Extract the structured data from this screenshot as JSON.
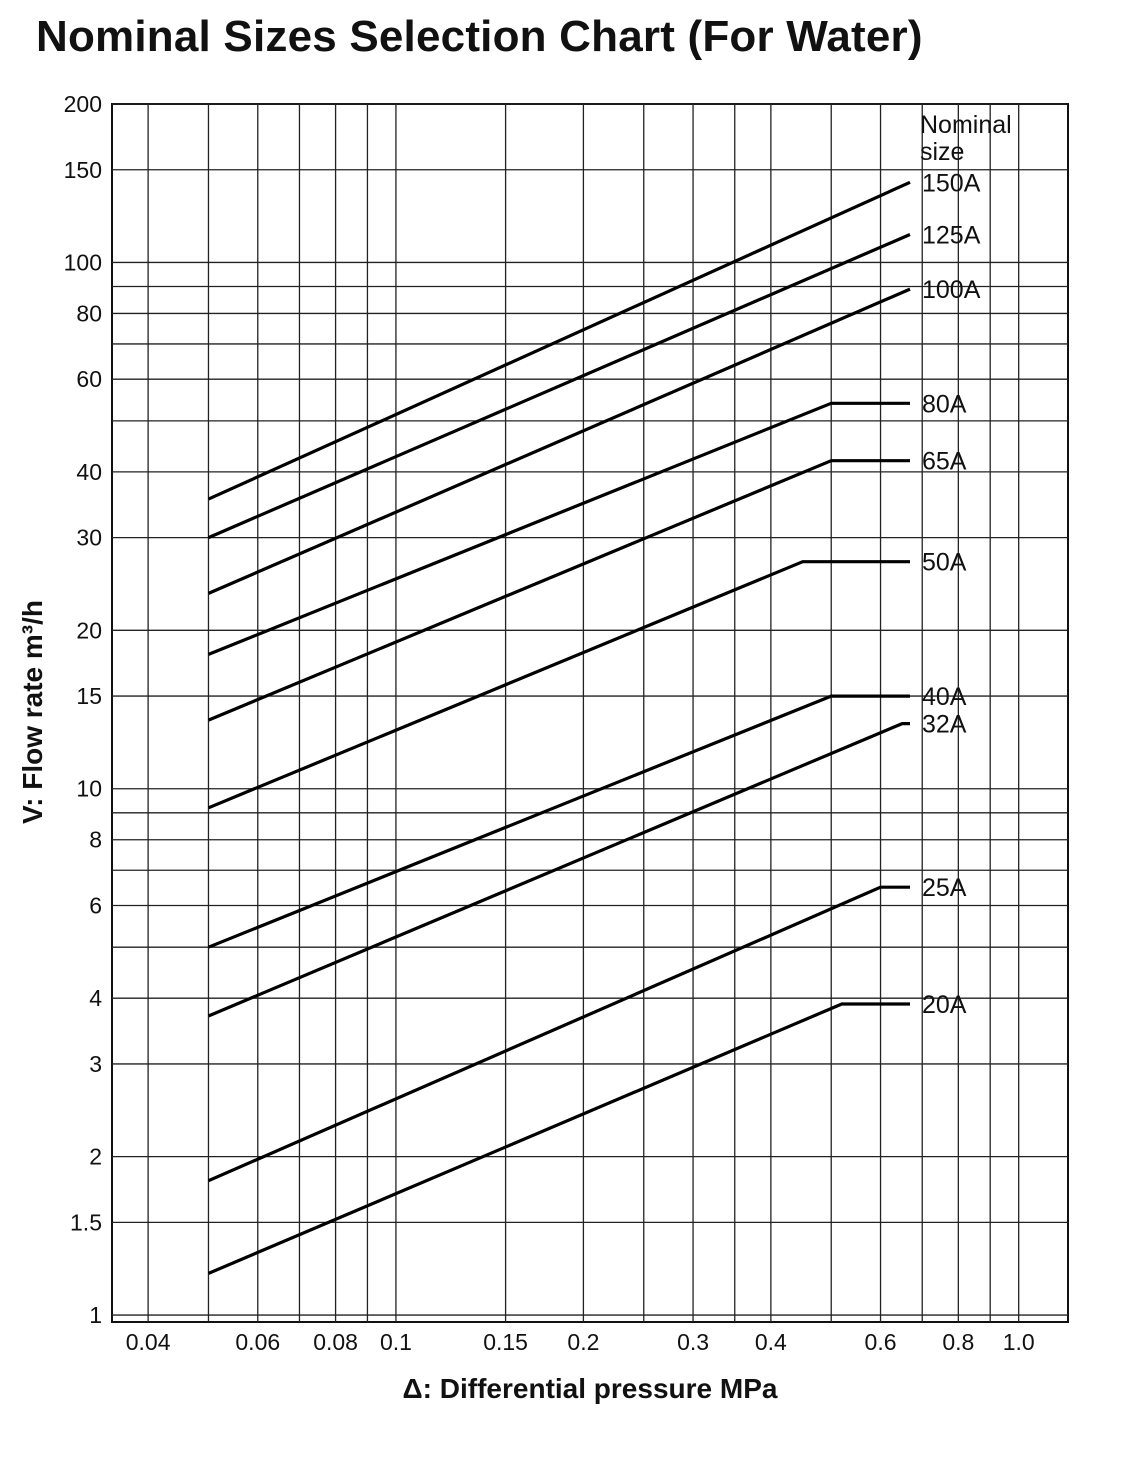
{
  "title": "Nominal Sizes Selection Chart (For Water)",
  "chart_data": {
    "type": "line",
    "title": "Nominal Sizes Selection Chart (For Water)",
    "xlabel": "Δ: Differential pressure MPa",
    "ylabel": "V: Flow rate m³/h",
    "xscale": "log",
    "yscale": "log",
    "xlim": [
      0.035,
      1.2
    ],
    "ylim": [
      0.97,
      200
    ],
    "grid": true,
    "legend_title_line1": "Nominal",
    "legend_title_line2": "size",
    "x_ticks": [
      {
        "value": 0.04,
        "label": "0.04"
      },
      {
        "value": 0.06,
        "label": "0.06"
      },
      {
        "value": 0.08,
        "label": "0.08"
      },
      {
        "value": 0.1,
        "label": "0.1"
      },
      {
        "value": 0.15,
        "label": "0.15"
      },
      {
        "value": 0.2,
        "label": "0.2"
      },
      {
        "value": 0.3,
        "label": "0.3"
      },
      {
        "value": 0.4,
        "label": "0.4"
      },
      {
        "value": 0.6,
        "label": "0.6"
      },
      {
        "value": 0.8,
        "label": "0.8"
      },
      {
        "value": 1.0,
        "label": "1.0"
      }
    ],
    "x_minor_grid": [
      0.05,
      0.07,
      0.09,
      0.25,
      0.35,
      0.5,
      0.7,
      0.9
    ],
    "y_ticks": [
      {
        "value": 1,
        "label": "1"
      },
      {
        "value": 1.5,
        "label": "1.5"
      },
      {
        "value": 2,
        "label": "2"
      },
      {
        "value": 3,
        "label": "3"
      },
      {
        "value": 4,
        "label": "4"
      },
      {
        "value": 6,
        "label": "6"
      },
      {
        "value": 8,
        "label": "8"
      },
      {
        "value": 10,
        "label": "10"
      },
      {
        "value": 15,
        "label": "15"
      },
      {
        "value": 20,
        "label": "20"
      },
      {
        "value": 30,
        "label": "30"
      },
      {
        "value": 40,
        "label": "40"
      },
      {
        "value": 60,
        "label": "60"
      },
      {
        "value": 80,
        "label": "80"
      },
      {
        "value": 100,
        "label": "100"
      },
      {
        "value": 150,
        "label": "150"
      },
      {
        "value": 200,
        "label": "200"
      }
    ],
    "y_minor_grid": [
      5,
      7,
      9,
      50,
      70,
      90
    ],
    "series": [
      {
        "name": "150A",
        "x": [
          0.05,
          0.8,
          1.0
        ],
        "y": [
          35.5,
          142,
          142
        ]
      },
      {
        "name": "125A",
        "x": [
          0.05,
          0.7,
          1.0
        ],
        "y": [
          30,
          113,
          113
        ]
      },
      {
        "name": "100A",
        "x": [
          0.05,
          0.7,
          1.0
        ],
        "y": [
          23.5,
          89,
          89
        ]
      },
      {
        "name": "80A",
        "x": [
          0.05,
          0.5,
          1.0
        ],
        "y": [
          18,
          54,
          54
        ]
      },
      {
        "name": "65A",
        "x": [
          0.05,
          0.5,
          1.0
        ],
        "y": [
          13.5,
          42,
          42
        ]
      },
      {
        "name": "50A",
        "x": [
          0.05,
          0.45,
          1.0
        ],
        "y": [
          9.2,
          27,
          27
        ]
      },
      {
        "name": "40A",
        "x": [
          0.05,
          0.5,
          1.0
        ],
        "y": [
          5,
          15,
          15
        ]
      },
      {
        "name": "32A",
        "x": [
          0.05,
          0.65,
          1.0
        ],
        "y": [
          3.7,
          13.3,
          13.3
        ]
      },
      {
        "name": "25A",
        "x": [
          0.05,
          0.6,
          1.0
        ],
        "y": [
          1.8,
          6.5,
          6.5
        ]
      },
      {
        "name": "20A",
        "x": [
          0.05,
          0.52,
          1.0
        ],
        "y": [
          1.2,
          3.9,
          3.9
        ]
      }
    ]
  }
}
